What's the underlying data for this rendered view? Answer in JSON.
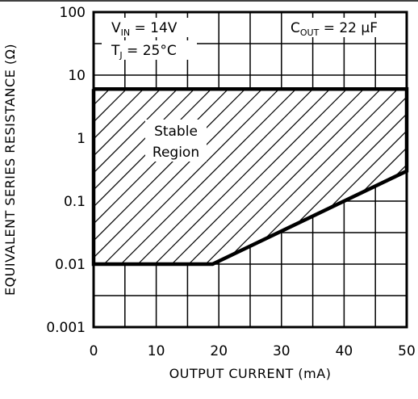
{
  "chart_data": {
    "type": "area",
    "title": "",
    "xlabel": "OUTPUT CURRENT (mA)",
    "ylabel": "EQUIVALENT SERIES RESISTANCE (Ω)",
    "xlim": [
      0,
      50
    ],
    "ylim": [
      0.001,
      100
    ],
    "yscale": "log",
    "grid": true,
    "x_ticks": [
      0,
      10,
      20,
      30,
      40,
      50
    ],
    "x_tick_labels": [
      "0",
      "10",
      "20",
      "30",
      "40",
      "50"
    ],
    "y_ticks": [
      0.001,
      0.01,
      0.1,
      1,
      10,
      100
    ],
    "y_tick_labels": [
      "0.001",
      "0.01",
      "0.1",
      "1",
      "10",
      "100"
    ],
    "region": {
      "name": "Stable Region",
      "label_line1": "Stable",
      "label_line2": "Region",
      "fill": "hatched",
      "upper_boundary": {
        "x": [
          0,
          50
        ],
        "y": [
          6,
          6
        ]
      },
      "lower_boundary": {
        "x": [
          0,
          19,
          50
        ],
        "y": [
          0.01,
          0.01,
          0.3
        ]
      }
    },
    "conditions": {
      "vin_main": "V",
      "vin_sub": "IN",
      "vin_value": " = 14V",
      "tj_main": "T",
      "tj_sub": "J",
      "tj_value": " = 25°C",
      "cout_main": "C",
      "cout_sub": "OUT",
      "cout_value": " = 22 μF"
    }
  },
  "colors": {
    "line": "#000000",
    "background": "#ffffff"
  }
}
